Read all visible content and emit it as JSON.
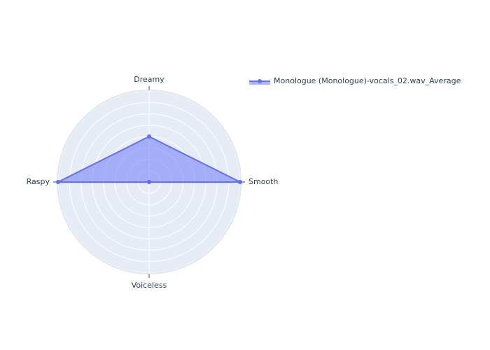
{
  "chart_data": {
    "type": "radar",
    "axes": [
      "Dreamy",
      "Smooth",
      "Voiceless",
      "Raspy"
    ],
    "radial_range": [
      0,
      1
    ],
    "series": [
      {
        "name": "Monologue (Monologue)-vocals_02.wav_Average",
        "values": [
          0.5,
          1.0,
          0.0,
          1.0
        ]
      }
    ],
    "grid": true,
    "legend_position": "top-right",
    "colors": {
      "series_line": "#636efa",
      "series_fill": "#636efa",
      "polar_bg": "#e5ecf6",
      "grid": "#ffffff",
      "text": "#2a3f5f"
    }
  }
}
